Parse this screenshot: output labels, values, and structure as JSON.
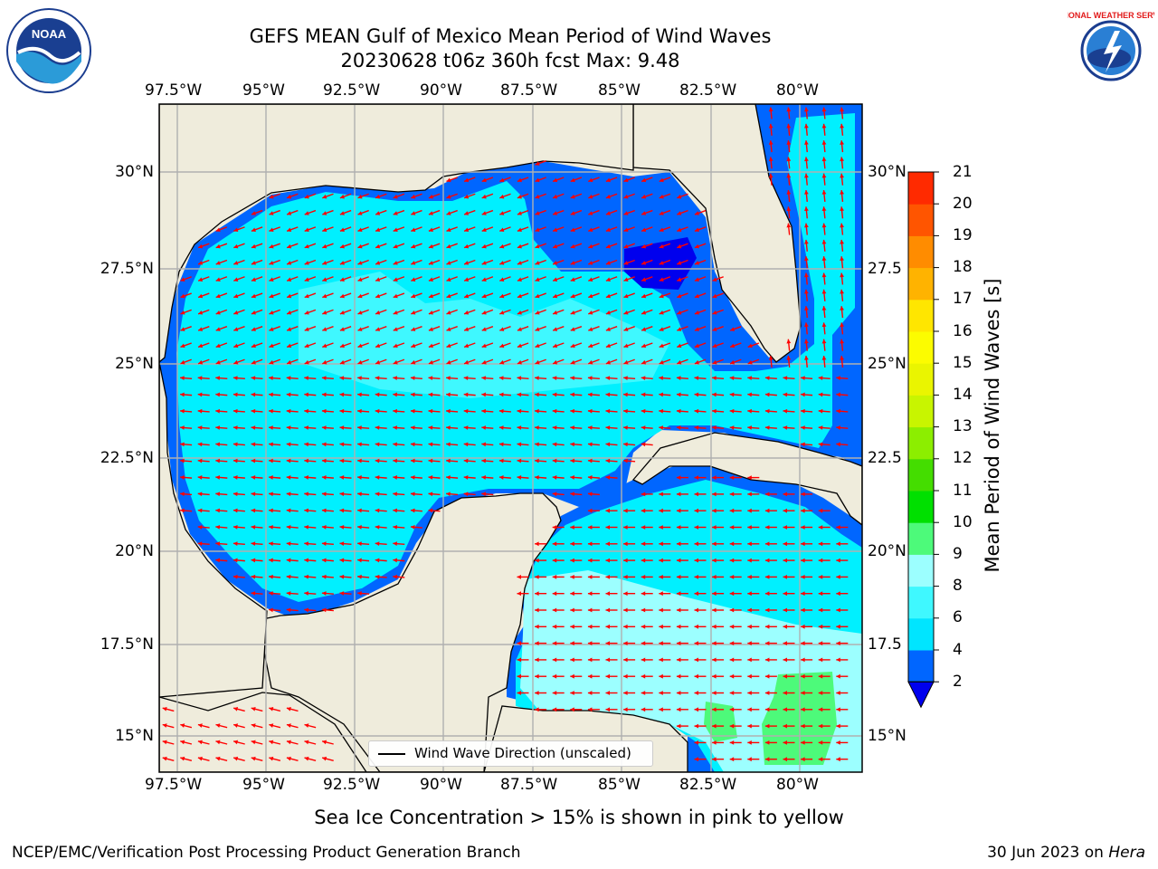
{
  "title": {
    "line1": "GEFS MEAN Gulf of Mexico Mean Period of Wind Waves",
    "line2": "20230628 t06z 360h fcst   Max: 9.48"
  },
  "map": {
    "lon_labels": [
      "97.5°W",
      "95°W",
      "92.5°W",
      "90°W",
      "87.5°W",
      "85°W",
      "82.5°W",
      "80°W"
    ],
    "lat_labels_left": [
      "30°N",
      "27.5°N",
      "25°N",
      "22.5°N",
      "20°N",
      "17.5°N",
      "15°N"
    ],
    "lat_labels_right": [
      "30°N",
      "27.5",
      "25°N",
      "22.5",
      "20°N",
      "17.5",
      "15°N"
    ],
    "land_color": "#efecdc",
    "vector_color": "#ff0000",
    "legend_label": "Wind Wave Direction (unscaled)"
  },
  "colorbar": {
    "label": "Mean Period of Wind Waves [s]",
    "ticks": [
      "2",
      "4",
      "6",
      "8",
      "9",
      "10",
      "11",
      "12",
      "13",
      "14",
      "15",
      "16",
      "17",
      "18",
      "19",
      "20",
      "21"
    ],
    "colors": [
      "#0066ff",
      "#00e5ff",
      "#3ff8ff",
      "#9cffff",
      "#4dfa7a",
      "#00e000",
      "#44dd00",
      "#8cee00",
      "#c8f500",
      "#eaf500",
      "#fcfc00",
      "#ffe600",
      "#ffb300",
      "#ff8c00",
      "#ff5500",
      "#ff2a00",
      "#ff0000"
    ],
    "under_color": "#0000ee"
  },
  "note": "Sea Ice Concentration > 15% is shown in pink to yellow",
  "footer": {
    "left": "NCEP/EMC/Verification Post Processing Product Generation Branch",
    "date": "30 Jun 2023 on ",
    "host": "Hera"
  },
  "logos": {
    "noaa_text": "NOAA",
    "nws_text": "NATIONAL WEATHER SERVICE"
  }
}
